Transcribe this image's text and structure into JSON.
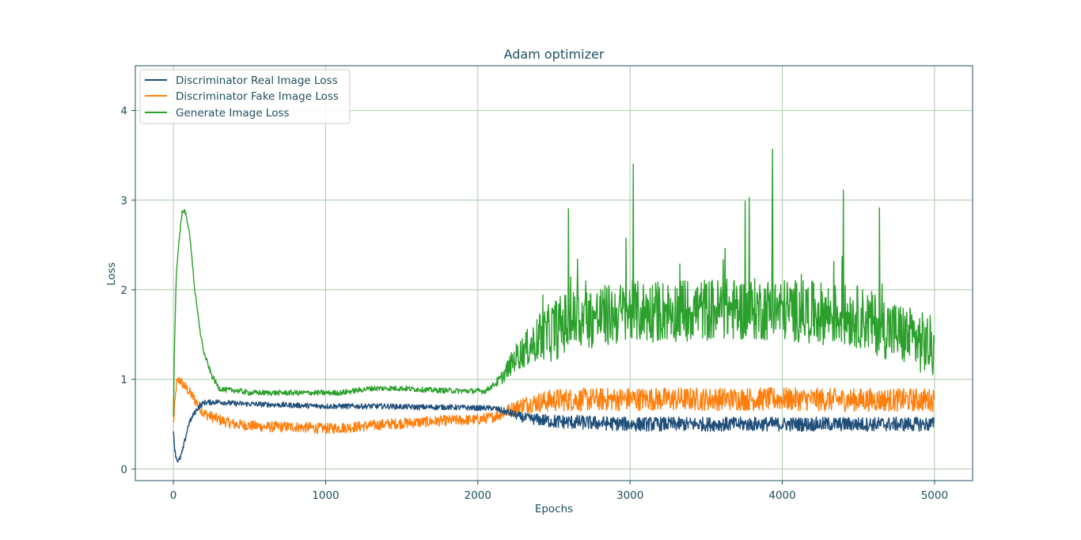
{
  "chart_data": {
    "type": "line",
    "title": "Adam optimizer",
    "xlabel": "Epochs",
    "ylabel": "Loss",
    "xlim": [
      -250,
      5250
    ],
    "ylim": [
      -0.13,
      4.5
    ],
    "xticks": [
      0,
      1000,
      2000,
      3000,
      4000,
      5000
    ],
    "yticks": [
      0,
      1,
      2,
      3,
      4
    ],
    "xtick_labels": [
      "0",
      "1000",
      "2000",
      "3000",
      "4000",
      "5000"
    ],
    "ytick_labels": [
      "0",
      "1",
      "2",
      "3",
      "4"
    ],
    "grid": true,
    "legend_position": "upper-left",
    "series": [
      {
        "name": "Discriminator Real Image Loss",
        "color": "#1f4e79",
        "noise": [
          0.03,
          0.03,
          0.08
        ],
        "x": [
          0,
          10,
          20,
          30,
          40,
          60,
          80,
          100,
          130,
          160,
          200,
          300,
          400,
          600,
          800,
          1000,
          1200,
          1400,
          1600,
          1800,
          2000,
          2100,
          2200,
          2300,
          2500,
          3000,
          3500,
          4000,
          4500,
          5000
        ],
        "y": [
          0.45,
          0.2,
          0.12,
          0.09,
          0.1,
          0.2,
          0.35,
          0.5,
          0.6,
          0.68,
          0.74,
          0.75,
          0.73,
          0.72,
          0.71,
          0.7,
          0.7,
          0.7,
          0.69,
          0.69,
          0.68,
          0.68,
          0.63,
          0.57,
          0.53,
          0.5,
          0.5,
          0.5,
          0.5,
          0.5
        ]
      },
      {
        "name": "Discriminator Fake Image Loss",
        "color": "#ff7f0e",
        "noise": [
          0.06,
          0.06,
          0.13
        ],
        "x": [
          0,
          20,
          40,
          60,
          100,
          150,
          200,
          300,
          400,
          600,
          800,
          1000,
          1200,
          1400,
          1600,
          1800,
          2000,
          2100,
          2200,
          2300,
          2500,
          3000,
          3500,
          4000,
          4500,
          5000
        ],
        "y": [
          0.5,
          0.95,
          1.0,
          0.95,
          0.87,
          0.75,
          0.62,
          0.55,
          0.5,
          0.47,
          0.47,
          0.45,
          0.47,
          0.5,
          0.52,
          0.54,
          0.55,
          0.58,
          0.65,
          0.72,
          0.77,
          0.78,
          0.78,
          0.78,
          0.77,
          0.77
        ]
      },
      {
        "name": "Generate Image Loss",
        "color": "#2ca02c",
        "noise": [
          0.03,
          0.03,
          0.35
        ],
        "x": [
          0,
          10,
          20,
          40,
          60,
          80,
          100,
          120,
          140,
          170,
          200,
          250,
          300,
          350,
          400,
          500,
          700,
          900,
          1100,
          1300,
          1500,
          1700,
          1900,
          2050,
          2150,
          2250,
          2400,
          2600,
          3000,
          3500,
          4000,
          4500,
          5000
        ],
        "y": [
          0.6,
          1.6,
          2.2,
          2.6,
          2.9,
          2.85,
          2.7,
          2.4,
          2.0,
          1.6,
          1.3,
          1.05,
          0.9,
          0.88,
          0.88,
          0.85,
          0.85,
          0.85,
          0.85,
          0.9,
          0.9,
          0.88,
          0.87,
          0.87,
          1.0,
          1.25,
          1.45,
          1.65,
          1.75,
          1.78,
          1.78,
          1.7,
          1.35
        ]
      }
    ]
  }
}
